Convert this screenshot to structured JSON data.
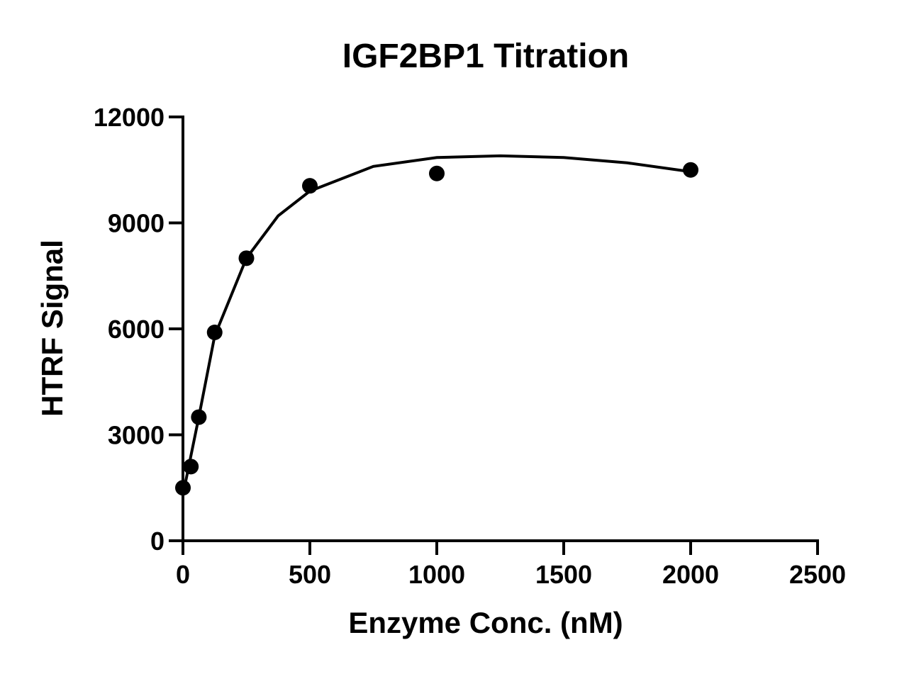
{
  "chart_data": {
    "type": "scatter",
    "title": "IGF2BP1 Titration",
    "xlabel": "Enzyme Conc. (nM)",
    "ylabel": "HTRF Signal",
    "xlim": [
      0,
      2500
    ],
    "xticks": [
      0,
      500,
      1000,
      1500,
      2000,
      2500
    ],
    "ylim": [
      0,
      12000
    ],
    "yticks": [
      0,
      3000,
      6000,
      9000,
      12000
    ],
    "series": [
      {
        "type": "scatter",
        "color": "#000000",
        "x": [
          0,
          31.25,
          62.5,
          125,
          250,
          500,
          1000,
          2000
        ],
        "values": [
          1500,
          2100,
          3500,
          5900,
          8000,
          10050,
          10400,
          10500
        ]
      },
      {
        "type": "line",
        "color": "#000000",
        "x": [
          0,
          31.25,
          62.5,
          125,
          250,
          375,
          500,
          750,
          1000,
          1250,
          1500,
          1750,
          2000
        ],
        "values": [
          1300,
          2400,
          3500,
          5800,
          8000,
          9200,
          9900,
          10600,
          10850,
          10900,
          10850,
          10700,
          10450
        ]
      }
    ]
  }
}
